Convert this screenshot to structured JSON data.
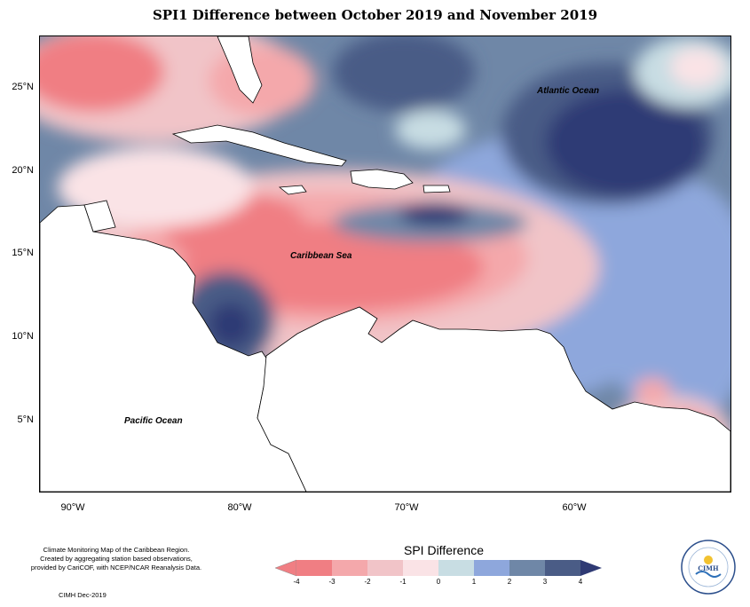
{
  "title": "SPI1 Difference between October 2019 and November 2019",
  "map": {
    "labels": {
      "atlantic": "Atlantic Ocean",
      "caribbean": "Caribbean Sea",
      "pacific": "Pacific Ocean"
    },
    "lat_ticks": [
      "25°N",
      "20°N",
      "15°N",
      "10°N",
      "5°N"
    ],
    "lon_ticks": [
      "90°W",
      "80°W",
      "70°W",
      "60°W"
    ],
    "colors": {
      "m4": "#f07e83",
      "m3": "#f4a8ab",
      "m2": "#f1c4c8",
      "m1": "#fae3e6",
      "p0": "#c8dde3",
      "p1": "#8ea7dc",
      "p2": "#6f87a7",
      "p3": "#4a5c86",
      "p4": "#2f3a74",
      "land": "#ffffff"
    }
  },
  "legend": {
    "title": "SPI Difference",
    "ticks": [
      "-4",
      "-3",
      "-2",
      "-1",
      "0",
      "1",
      "2",
      "3",
      "4"
    ],
    "colors": [
      "#f07e83",
      "#f4a8ab",
      "#f1c4c8",
      "#fae3e6",
      "#c8dde3",
      "#8ea7dc",
      "#6f87a7",
      "#4a5c86"
    ]
  },
  "footer": {
    "note_line1": "Climate Monitoring Map of the Caribbean Region.",
    "note_line2": "Created by aggregating station based observations,",
    "note_line3": "provided by CariCOF, with NCEP/NCAR Reanalysis Data.",
    "credit": "CIMH Dec-2019",
    "logo_text": "CIMH"
  }
}
